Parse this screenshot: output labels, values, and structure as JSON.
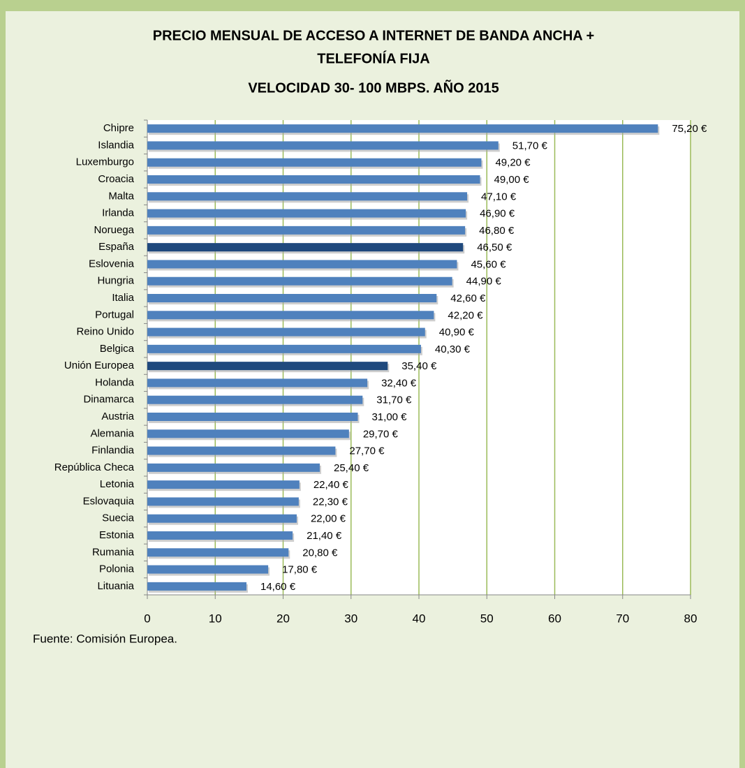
{
  "chart_data": {
    "type": "hbar",
    "title": [
      "PRECIO MENSUAL DE ACCESO A INTERNET DE BANDA ANCHA +",
      "TELEFONÍA FIJA",
      "VELOCIDAD 30- 100 MBPS. AÑO 2015"
    ],
    "source": "Fuente: Comisión Europea.",
    "categories": [
      "Chipre",
      "Islandia",
      "Luxemburgo",
      "Croacia",
      "Malta",
      "Irlanda",
      "Noruega",
      "España",
      "Eslovenia",
      "Hungria",
      "Italia",
      "Portugal",
      "Reino Unido",
      "Belgica",
      "Unión Europea",
      "Holanda",
      "Dinamarca",
      "Austria",
      "Alemania",
      "Finlandia",
      "República Checa",
      "Letonia",
      "Eslovaquia",
      "Suecia",
      "Estonia",
      "Rumania",
      "Polonia",
      "Lituania"
    ],
    "values": [
      75.2,
      51.7,
      49.2,
      49.0,
      47.1,
      46.9,
      46.8,
      46.5,
      45.6,
      44.9,
      42.6,
      42.2,
      40.9,
      40.3,
      35.4,
      32.4,
      31.7,
      31.0,
      29.7,
      27.7,
      25.4,
      22.4,
      22.3,
      22.0,
      21.4,
      20.8,
      17.8,
      14.6
    ],
    "value_labels": [
      "75,20 €",
      "51,70 €",
      "49,20 €",
      "49,00 €",
      "47,10 €",
      "46,90 €",
      "46,80 €",
      "46,50 €",
      "45,60 €",
      "44,90 €",
      "42,60 €",
      "42,20 €",
      "40,90 €",
      "40,30 €",
      "35,40 €",
      "32,40 €",
      "31,70 €",
      "31,00 €",
      "29,70 €",
      "27,70 €",
      "25,40 €",
      "22,40 €",
      "22,30 €",
      "22,00 €",
      "21,40 €",
      "20,80 €",
      "17,80 €",
      "14,60 €"
    ],
    "colors": [
      "#4f81bd",
      "#4f81bd",
      "#4f81bd",
      "#4f81bd",
      "#4f81bd",
      "#4f81bd",
      "#4f81bd",
      "#1f497d",
      "#4f81bd",
      "#4f81bd",
      "#4f81bd",
      "#4f81bd",
      "#4f81bd",
      "#4f81bd",
      "#1f497d",
      "#4f81bd",
      "#4f81bd",
      "#4f81bd",
      "#4f81bd",
      "#4f81bd",
      "#4f81bd",
      "#4f81bd",
      "#4f81bd",
      "#4f81bd",
      "#4f81bd",
      "#4f81bd",
      "#4f81bd",
      "#4f81bd"
    ],
    "xlim": [
      0,
      80
    ],
    "xticks": [
      0,
      10,
      20,
      30,
      40,
      50,
      60,
      70,
      80
    ],
    "grid": true,
    "grid_color": "#9bbb59"
  }
}
